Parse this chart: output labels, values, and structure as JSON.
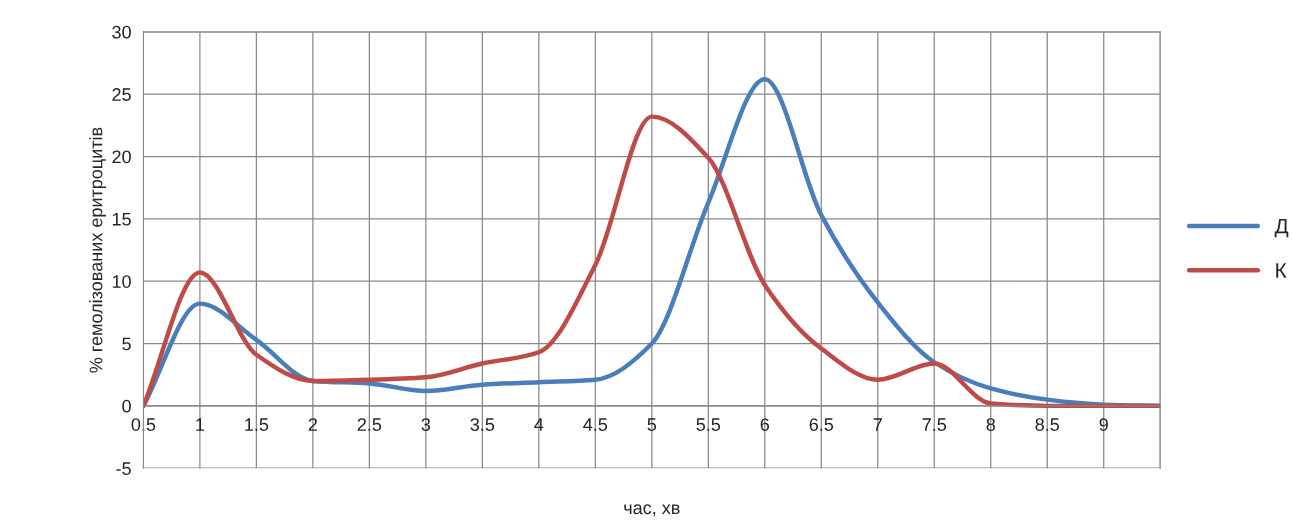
{
  "chart_data": {
    "type": "line",
    "xlabel": "час, хв",
    "ylabel": "% гемолізованих еритроцитів",
    "x": [
      0.5,
      1,
      1.5,
      2,
      2.5,
      3,
      3.5,
      4,
      4.5,
      5,
      5.5,
      6,
      6.5,
      7,
      7.5,
      8,
      8.5,
      9,
      9.5
    ],
    "series": [
      {
        "name": "Д",
        "color": "#4a7ebb",
        "values": [
          0,
          8.2,
          5.3,
          2.0,
          1.8,
          1.2,
          1.7,
          1.9,
          2.1,
          5.0,
          16.3,
          26.2,
          15.3,
          8.3,
          3.5,
          1.4,
          0.5,
          0.1,
          0
        ]
      },
      {
        "name": "К",
        "color": "#be4b48",
        "values": [
          0,
          10.7,
          4.1,
          2.0,
          2.1,
          2.3,
          3.4,
          4.3,
          11.3,
          23.2,
          19.9,
          9.7,
          4.6,
          2.1,
          3.4,
          0.2,
          0,
          0,
          0
        ]
      }
    ],
    "xlim": [
      0.5,
      9.5
    ],
    "xticks": [
      0.5,
      1,
      1.5,
      2,
      2.5,
      3,
      3.5,
      4,
      4.5,
      5,
      5.5,
      6,
      6.5,
      7,
      7.5,
      8,
      8.5,
      9,
      {
        "value": 9.5,
        "label": null
      }
    ],
    "ylim": [
      -5,
      30
    ],
    "yticks": [
      -5,
      0,
      5,
      10,
      15,
      20,
      25,
      30
    ],
    "grid": true,
    "legend": "right",
    "line_style": "solid",
    "marker": "none"
  }
}
